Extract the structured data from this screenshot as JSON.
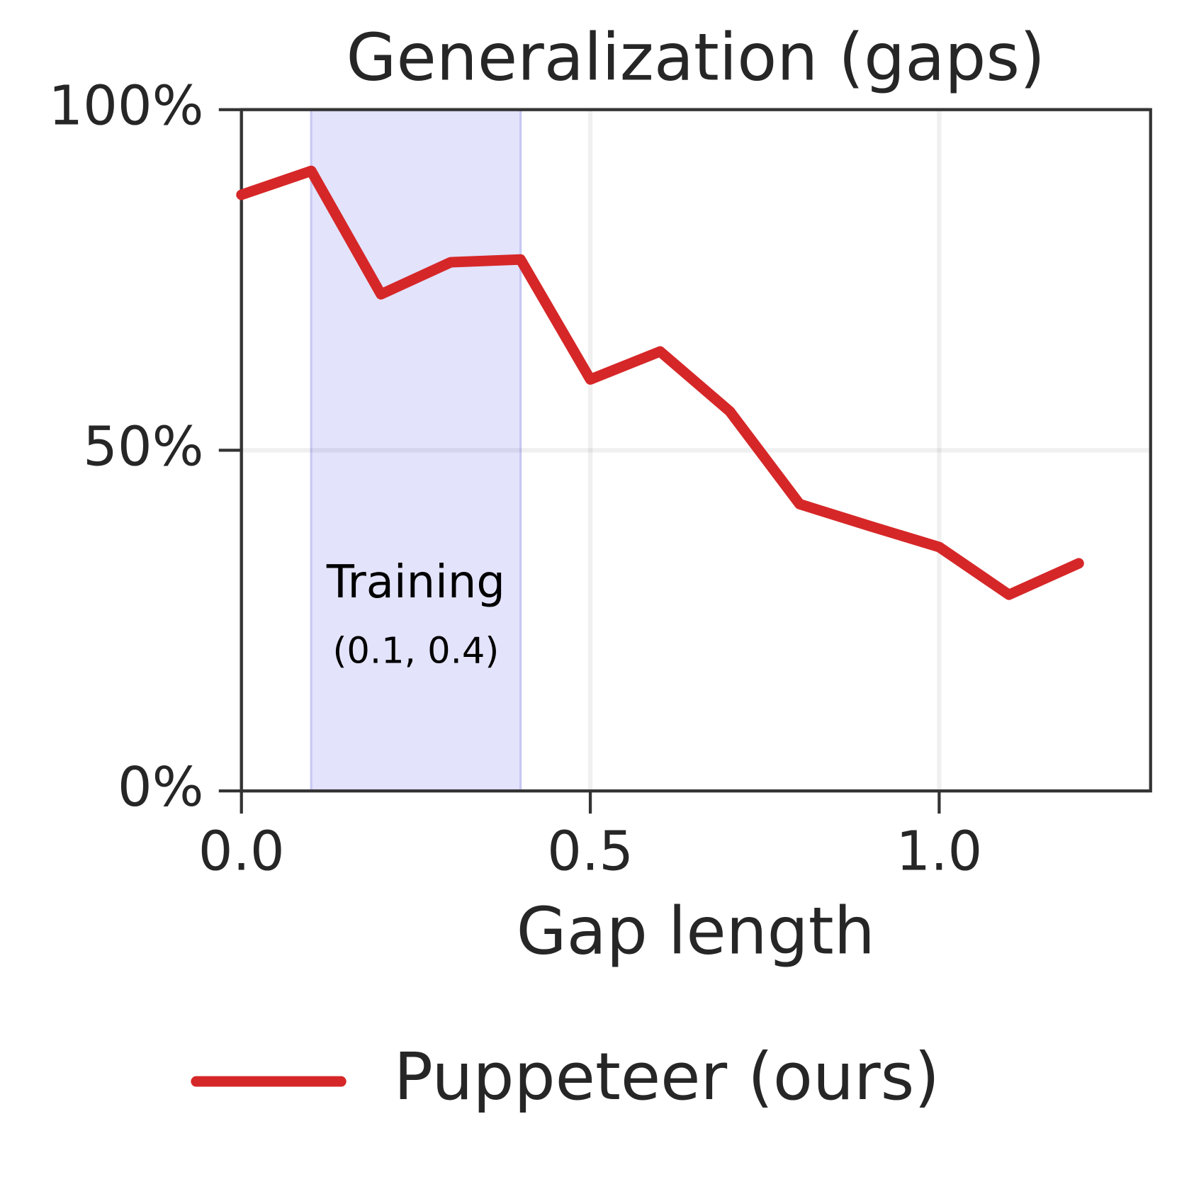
{
  "chart_data": {
    "type": "line",
    "title": "Generalization (gaps)",
    "x_label": "Gap length",
    "x": [
      0.0,
      0.1,
      0.2,
      0.3,
      0.4,
      0.5,
      0.6,
      0.7,
      0.8,
      0.9,
      1.0,
      1.1,
      1.2
    ],
    "series": [
      {
        "name": "Puppeteer (ours)",
        "color": "#d62728",
        "values": [
          87.5,
          91.0,
          72.9,
          77.6,
          78.0,
          60.4,
          64.5,
          55.7,
          42.1,
          38.9,
          35.8,
          28.8,
          33.4
        ]
      }
    ],
    "xlim": [
      0.0,
      1.303
    ],
    "xticks": [
      {
        "value": 0,
        "label": "0.0"
      },
      0.5,
      {
        "value": 1,
        "label": "1.0"
      }
    ],
    "ylim": [
      0,
      100
    ],
    "yticks": [
      {
        "value": 0,
        "label": "0%"
      },
      {
        "value": 50,
        "label": "50%"
      },
      {
        "value": 100,
        "label": "100%"
      }
    ],
    "grid": true,
    "legend": "bottom",
    "band": {
      "range": [
        0.1,
        0.4
      ],
      "color": "#e3e3fc",
      "label": "Training",
      "sublabel": "(0.1, 0.4)"
    }
  }
}
